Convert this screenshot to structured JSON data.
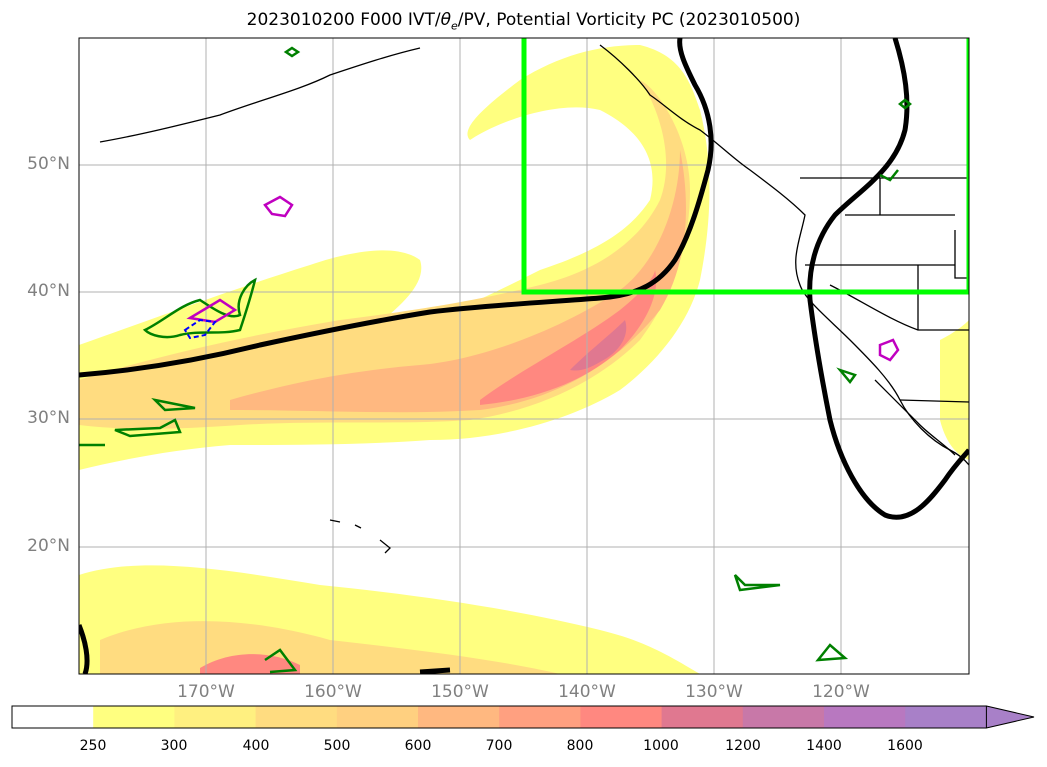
{
  "title_prefix": "2023010200 F000 IVT/",
  "title_theta": "θ",
  "title_sub": "e",
  "title_suffix": "/PV, Potential Vorticity PC (2023010500)",
  "lat_labels": [
    "50°N",
    "40°N",
    "30°N",
    "20°N"
  ],
  "lon_labels": [
    "170°W",
    "160°W",
    "150°W",
    "140°W",
    "130°W",
    "120°W"
  ],
  "colorbar": {
    "ticks": [
      "250",
      "300",
      "400",
      "500",
      "600",
      "700",
      "800",
      "1000",
      "1200",
      "1400",
      "1600"
    ],
    "colors": [
      "#ffffff",
      "#ffff80",
      "#fff080",
      "#ffdc80",
      "#ffd080",
      "#ffb880",
      "#ffa080",
      "#ff8880",
      "#e07890",
      "#c878a8",
      "#b878c0",
      "#a880c8"
    ],
    "extend": "max"
  },
  "map": {
    "projection": "PlateCarree",
    "lon_range": [
      -180,
      -110
    ],
    "lat_range": [
      10,
      60
    ],
    "gridlines": true,
    "highlight_box_color": "#00ff00"
  }
}
